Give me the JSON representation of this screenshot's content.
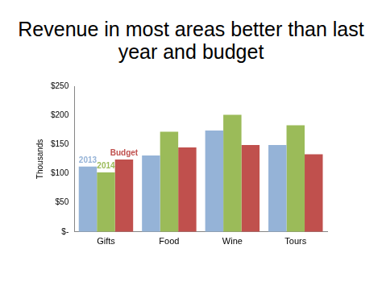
{
  "chart_data": {
    "type": "bar",
    "title": "Revenue in most areas better than last year and budget",
    "y_label": "Thousands",
    "categories": [
      "Gifts",
      "Food",
      "Wine",
      "Tours"
    ],
    "series": [
      {
        "name": "2013",
        "color": "#95b3d7",
        "values": [
          112,
          131,
          174,
          149
        ]
      },
      {
        "name": "2014",
        "color": "#9bbb59",
        "values": [
          102,
          172,
          201,
          183
        ]
      },
      {
        "name": "Budget",
        "color": "#c0504d",
        "values": [
          124,
          145,
          149,
          133
        ]
      }
    ],
    "ylim": [
      0,
      250
    ],
    "yticks": [
      {
        "value": 0,
        "label": "$-"
      },
      {
        "value": 50,
        "label": "$50"
      },
      {
        "value": 100,
        "label": "$100"
      },
      {
        "value": 150,
        "label": "$150"
      },
      {
        "value": 200,
        "label": "$200"
      },
      {
        "value": 250,
        "label": "$250"
      }
    ],
    "grid": false
  }
}
